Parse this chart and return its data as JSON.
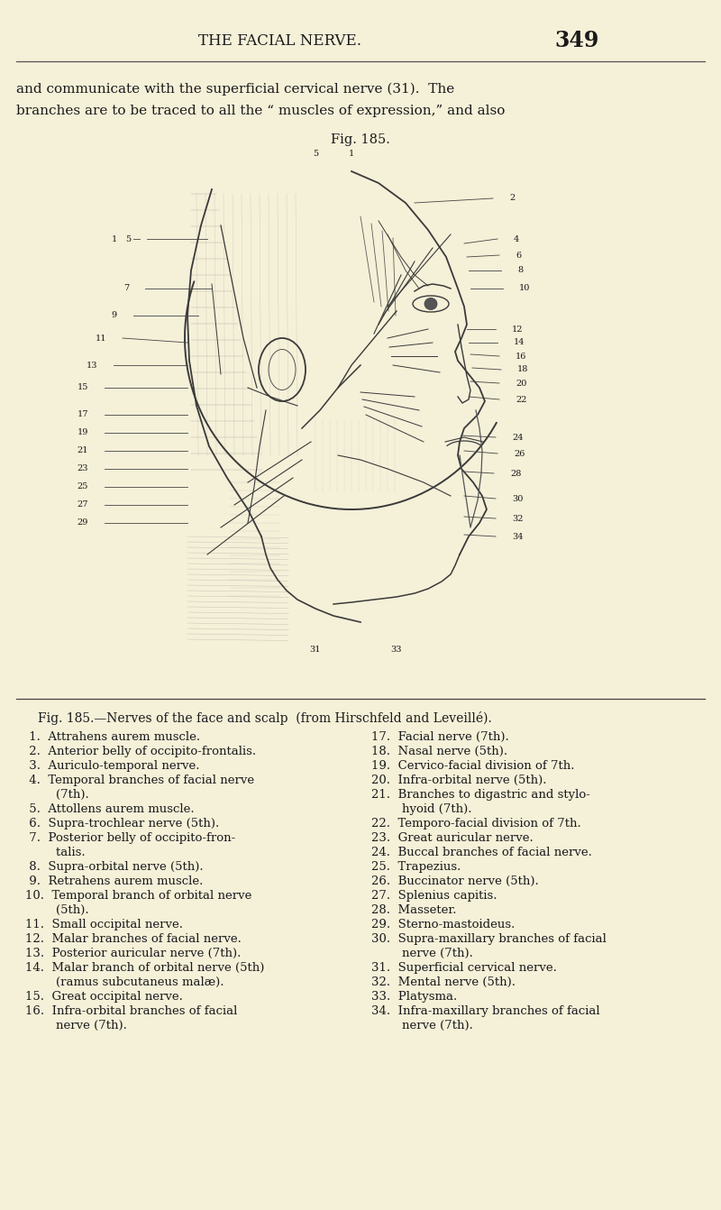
{
  "background_color": "#f5f0d8",
  "page_number": "349",
  "header_text": "THE FACIAL NERVE.",
  "body_text_line1": "and communicate with the superficial cervical nerve (31).  The",
  "body_text_line2": "branches are to be traced to all the “ muscles of expression,” and also",
  "fig_label": "Fig. 185.",
  "caption_line": "Fig. 185.—Nerves of the face and scalp  (from Hirschfeld and Leveillé).",
  "left_column": [
    " 1.  Attrahens aurem muscle.",
    " 2.  Anterior belly of occipito-frontalis.",
    " 3.  Auriculo-temporal nerve.",
    " 4.  Temporal branches of facial nerve",
    "        (7th).",
    " 5.  Attollens aurem muscle.",
    " 6.  Supra-trochlear nerve (5th).",
    " 7.  Posterior belly of occipito-fron-",
    "        talis.",
    " 8.  Supra-orbital nerve (5th).",
    " 9.  Retrahens aurem muscle.",
    "10.  Temporal branch of orbital nerve",
    "        (5th).",
    "11.  Small occipital nerve.",
    "12.  Malar branches of facial nerve.",
    "13.  Posterior auricular nerve (7th).",
    "14.  Malar branch of orbital nerve (5th)",
    "        (ramus subcutaneus malæ).",
    "15.  Great occipital nerve.",
    "16.  Infra-orbital branches of facial",
    "        nerve (7th)."
  ],
  "right_column": [
    "17.  Facial nerve (7th).",
    "18.  Nasal nerve (5th).",
    "19.  Cervico-facial division of 7th.",
    "20.  Infra-orbital nerve (5th).",
    "21.  Branches to digastric and stylo-",
    "        hyoid (7th).",
    "22.  Temporo-facial division of 7th.",
    "23.  Great auricular nerve.",
    "24.  Buccal branches of facial nerve.",
    "25.  Trapezius.",
    "26.  Buccinator nerve (5th).",
    "27.  Splenius capitis.",
    "28.  Masseter.",
    "29.  Sterno-mastoideus.",
    "30.  Supra-maxillary branches of facial",
    "        nerve (7th).",
    "31.  Superficial cervical nerve.",
    "32.  Mental nerve (5th).",
    "33.  Platysma.",
    "34.  Infra-maxillary branches of facial",
    "        nerve (7th)."
  ],
  "header_font_size": 12,
  "body_font_size": 11,
  "caption_font_size": 10,
  "list_font_size": 9.5,
  "fig_label_font_size": 10.5,
  "page_num_font_size": 17
}
